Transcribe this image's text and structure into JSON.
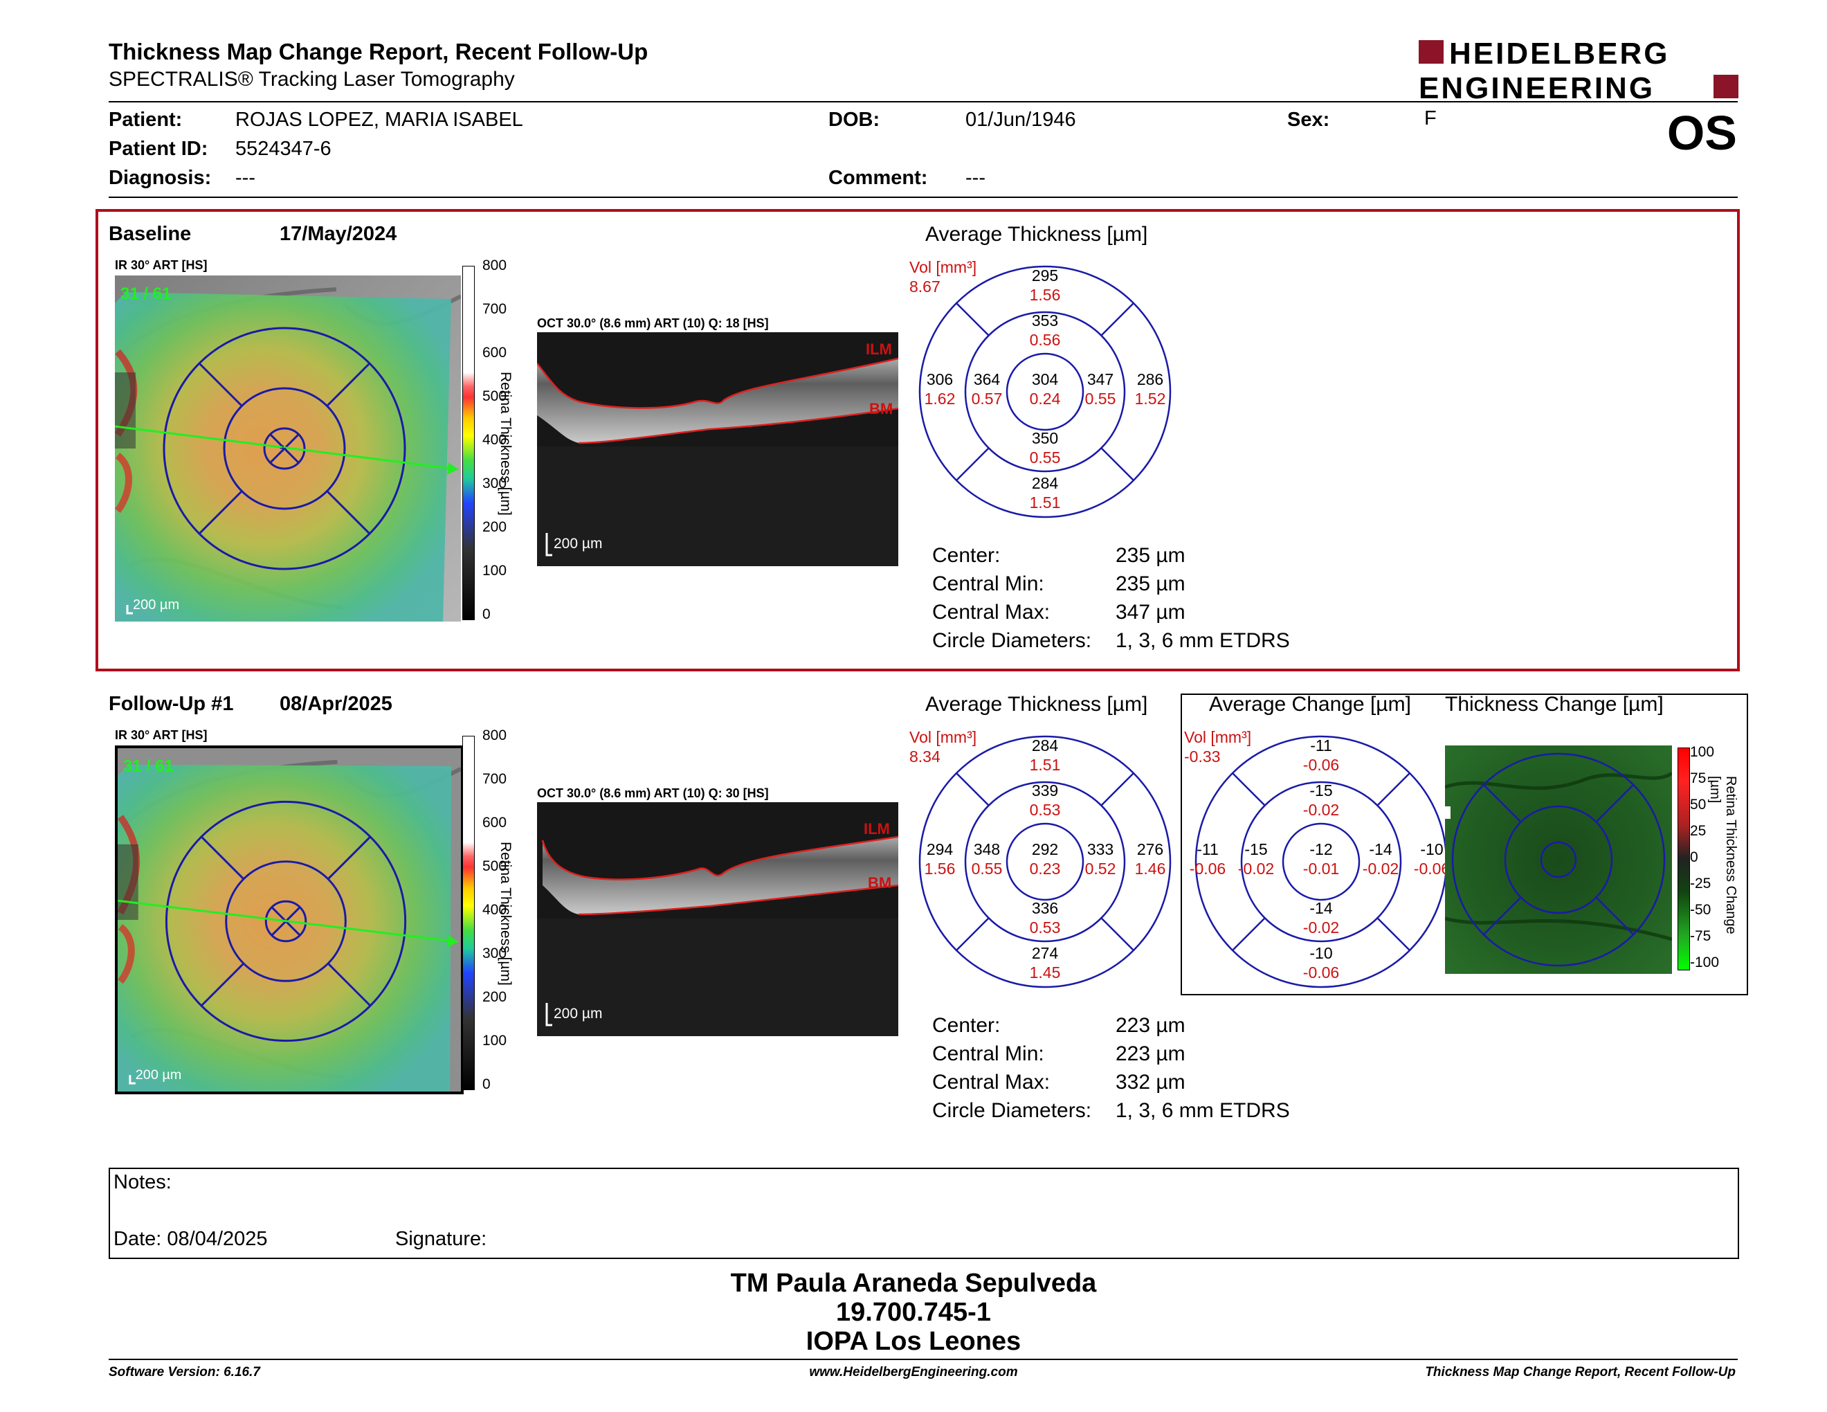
{
  "header": {
    "title": "Thickness Map Change Report, Recent Follow-Up",
    "subtitle": "SPECTRALIS® Tracking Laser Tomography",
    "logo_line1": "HEIDELBERG",
    "logo_line2": "ENGINEERING",
    "eye": "OS"
  },
  "patient": {
    "patient_label": "Patient:",
    "patient_value": "ROJAS LOPEZ, MARIA ISABEL",
    "id_label": "Patient ID:",
    "id_value": "5524347-6",
    "diagnosis_label": "Diagnosis:",
    "diagnosis_value": "---",
    "dob_label": "DOB:",
    "dob_value": "01/Jun/1946",
    "comment_label": "Comment:",
    "comment_value": "---",
    "sex_label": "Sex:",
    "sex_value": "F"
  },
  "colorbar": {
    "label": "Retina Thickness [µm]",
    "ticks": [
      "800",
      "700",
      "600",
      "500",
      "400",
      "300",
      "200",
      "100",
      "0"
    ]
  },
  "change_colorbar": {
    "label": "Retina Thickness Change [µm]",
    "ticks": [
      "100",
      "75",
      "50",
      "25",
      "0",
      "-25",
      "-50",
      "-75",
      "-100"
    ]
  },
  "baseline": {
    "label": "Baseline",
    "date": "17/May/2024",
    "ir_label": "IR 30° ART [HS]",
    "ir_frames": "31 / 61",
    "ir_scale": "200 µm",
    "oct_label": "OCT 30.0° (8.6 mm) ART (10) Q: 18 [HS]",
    "oct_scale": "200 µm",
    "ilm": "ILM",
    "bm": "BM",
    "avg_title": "Average Thickness [µm]",
    "vol_label": "Vol [mm³]",
    "vol_value": "8.67",
    "sectors": {
      "outer_sup": [
        "295",
        "1.56"
      ],
      "inner_sup": [
        "353",
        "0.56"
      ],
      "outer_temp": [
        "306",
        "1.62"
      ],
      "inner_temp": [
        "364",
        "0.57"
      ],
      "center": [
        "304",
        "0.24"
      ],
      "inner_nasal": [
        "347",
        "0.55"
      ],
      "outer_nasal": [
        "286",
        "1.52"
      ],
      "inner_inf": [
        "350",
        "0.55"
      ],
      "outer_inf": [
        "284",
        "1.51"
      ]
    },
    "stats": [
      {
        "k": "Center:",
        "v": "235 µm"
      },
      {
        "k": "Central Min:",
        "v": "235 µm"
      },
      {
        "k": "Central Max:",
        "v": "347 µm"
      },
      {
        "k": "Circle Diameters:",
        "v": "1, 3, 6 mm ETDRS"
      }
    ]
  },
  "followup": {
    "label": "Follow-Up #1",
    "date": "08/Apr/2025",
    "ir_label": "IR 30° ART [HS]",
    "ir_frames": "31 / 61",
    "ir_scale": "200 µm",
    "oct_label": "OCT 30.0° (8.6 mm) ART (10) Q: 30 [HS]",
    "oct_scale": "200 µm",
    "ilm": "ILM",
    "bm": "BM",
    "avg_title": "Average Thickness [µm]",
    "vol_label": "Vol [mm³]",
    "vol_value": "8.34",
    "sectors": {
      "outer_sup": [
        "284",
        "1.51"
      ],
      "inner_sup": [
        "339",
        "0.53"
      ],
      "outer_temp": [
        "294",
        "1.56"
      ],
      "inner_temp": [
        "348",
        "0.55"
      ],
      "center": [
        "292",
        "0.23"
      ],
      "inner_nasal": [
        "333",
        "0.52"
      ],
      "outer_nasal": [
        "276",
        "1.46"
      ],
      "inner_inf": [
        "336",
        "0.53"
      ],
      "outer_inf": [
        "274",
        "1.45"
      ]
    },
    "stats": [
      {
        "k": "Center:",
        "v": "223 µm"
      },
      {
        "k": "Central Min:",
        "v": "223 µm"
      },
      {
        "k": "Central Max:",
        "v": "332 µm"
      },
      {
        "k": "Circle Diameters:",
        "v": "1, 3, 6 mm ETDRS"
      }
    ]
  },
  "change": {
    "avg_title": "Average Change [µm]",
    "map_title": "Thickness Change [µm]",
    "vol_label": "Vol [mm³]",
    "vol_value": "-0.33",
    "sectors": {
      "outer_sup": [
        "-11",
        "-0.06"
      ],
      "inner_sup": [
        "-15",
        "-0.02"
      ],
      "outer_temp": [
        "-11",
        "-0.06"
      ],
      "inner_temp": [
        "-15",
        "-0.02"
      ],
      "center": [
        "-12",
        "-0.01"
      ],
      "inner_nasal": [
        "-14",
        "-0.02"
      ],
      "outer_nasal": [
        "-10",
        "-0.06"
      ],
      "inner_inf": [
        "-14",
        "-0.02"
      ],
      "outer_inf": [
        "-10",
        "-0.06"
      ]
    }
  },
  "notes": {
    "notes_label": "Notes:",
    "date_label": "Date: 08/04/2025",
    "signature_label": "Signature:"
  },
  "signer": {
    "name": "TM Paula Araneda Sepulveda",
    "id": "19.700.745-1",
    "org": "IOPA Los Leones"
  },
  "footer": {
    "left": "Software Version: 6.16.7",
    "center": "www.HeidelbergEngineering.com",
    "right": "Thickness Map Change Report, Recent Follow-Up"
  },
  "colors": {
    "accent_red": "#b00d1c",
    "grid_blue": "#1a1aa8",
    "vol_red": "#cc1111"
  }
}
